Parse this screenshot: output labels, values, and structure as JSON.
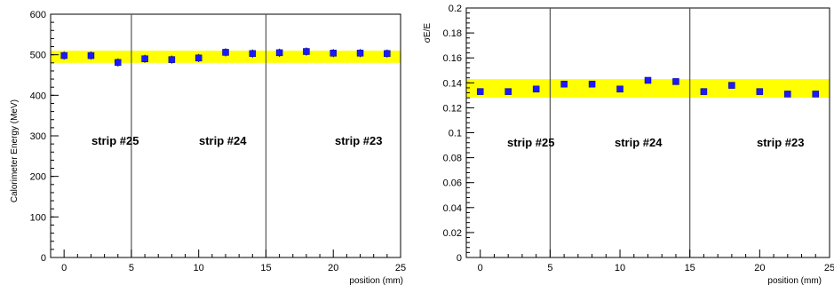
{
  "chart_data": [
    {
      "type": "scatter",
      "title": "",
      "xlabel": "position (mm)",
      "ylabel": "Calorimeter Energy (MeV)",
      "xlim": [
        -1,
        25
      ],
      "ylim": [
        0,
        600
      ],
      "x_ticks": [
        "0",
        "5",
        "10",
        "15",
        "20",
        "25"
      ],
      "y_ticks": [
        "0",
        "100",
        "200",
        "300",
        "400",
        "500",
        "600"
      ],
      "band": {
        "from": 480,
        "to": 510,
        "color": "#ffff00"
      },
      "vertical_lines": [
        5,
        15
      ],
      "strip_labels": [
        "strip #25",
        "strip #24",
        "strip #23"
      ],
      "marker_color": "#1a1aff",
      "series": [
        {
          "x": [
            0,
            2,
            4,
            6,
            8,
            10,
            12,
            14,
            16,
            18,
            20,
            22,
            24
          ],
          "values": [
            498,
            498,
            481,
            490,
            488,
            492,
            506,
            503,
            505,
            508,
            504,
            504,
            503
          ],
          "errors": [
            10,
            10,
            10,
            10,
            10,
            10,
            10,
            10,
            10,
            10,
            10,
            10,
            10
          ]
        }
      ]
    },
    {
      "type": "scatter",
      "title": "",
      "xlabel": "position (mm)",
      "ylabel": "σE/E",
      "xlim": [
        -1,
        25
      ],
      "ylim": [
        0,
        0.2
      ],
      "x_ticks": [
        "0",
        "5",
        "10",
        "15",
        "20",
        "25"
      ],
      "y_ticks": [
        "0",
        "0.02",
        "0.04",
        "0.06",
        "0.08",
        "0.1",
        "0.12",
        "0.14",
        "0.16",
        "0.18",
        "0.2"
      ],
      "band": {
        "from": 0.128,
        "to": 0.143,
        "color": "#ffff00"
      },
      "vertical_lines": [
        5,
        15
      ],
      "strip_labels": [
        "strip #25",
        "strip #24",
        "strip #23"
      ],
      "marker_color": "#1a1aff",
      "series": [
        {
          "x": [
            0,
            2,
            4,
            6,
            8,
            10,
            12,
            14,
            16,
            18,
            20,
            22,
            24
          ],
          "values": [
            0.133,
            0.133,
            0.135,
            0.139,
            0.139,
            0.135,
            0.142,
            0.141,
            0.133,
            0.138,
            0.133,
            0.131,
            0.131
          ]
        }
      ]
    }
  ]
}
